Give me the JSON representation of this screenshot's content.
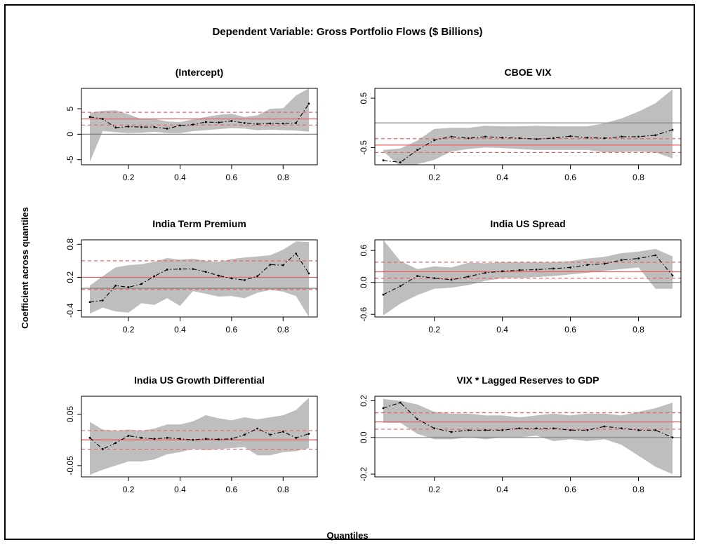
{
  "main_title": "Dependent Variable: Gross Portfolio Flows ($ Billions)",
  "ylabel": "Coefficient across quantiles",
  "xlabel": "Quantiles",
  "colors": {
    "band": "#bebebe",
    "ols": "#f06060",
    "zero": "#808080",
    "line": "#000000"
  },
  "chart_data": [
    {
      "type": "line",
      "title": "(Intercept)",
      "x": [
        0.05,
        0.1,
        0.15,
        0.2,
        0.25,
        0.3,
        0.35,
        0.4,
        0.45,
        0.5,
        0.55,
        0.6,
        0.65,
        0.7,
        0.75,
        0.8,
        0.85,
        0.9
      ],
      "series": [
        {
          "values": [
            3.4,
            3.0,
            1.3,
            1.5,
            1.4,
            1.4,
            1.1,
            1.7,
            1.9,
            2.4,
            2.3,
            2.6,
            2.2,
            2.0,
            2.1,
            2.1,
            2.2,
            6.0
          ]
        }
      ],
      "band_low": [
        -5.4,
        0.6,
        0.4,
        0.2,
        0.3,
        0.5,
        0.2,
        0.2,
        0.6,
        0.8,
        1.0,
        1.2,
        1.1,
        0.8,
        0.9,
        0.8,
        0.7,
        0.5
      ],
      "band_high": [
        4.2,
        4.6,
        4.7,
        3.9,
        3.0,
        3.0,
        2.5,
        2.4,
        2.9,
        3.4,
        3.8,
        4.0,
        3.4,
        3.7,
        5.0,
        5.1,
        7.6,
        9.0
      ],
      "ols": 3.0,
      "ols_low": 1.8,
      "ols_high": 4.3,
      "xlim": [
        0.05,
        0.9
      ],
      "ylim": [
        -6,
        9
      ],
      "xticks": [
        0.2,
        0.4,
        0.6,
        0.8
      ],
      "xticklabels": [
        "0.2",
        "0.4",
        "0.6",
        "0.8"
      ],
      "yticks": [
        -5,
        0,
        5
      ],
      "yticklabels": [
        "-5",
        "0",
        "5"
      ]
    },
    {
      "type": "line",
      "title": "CBOE VIX",
      "x": [
        0.05,
        0.1,
        0.15,
        0.2,
        0.25,
        0.3,
        0.35,
        0.4,
        0.45,
        0.5,
        0.55,
        0.6,
        0.65,
        0.7,
        0.75,
        0.8,
        0.85,
        0.9
      ],
      "series": [
        {
          "values": [
            -0.76,
            -0.8,
            -0.55,
            -0.35,
            -0.28,
            -0.31,
            -0.28,
            -0.3,
            -0.31,
            -0.33,
            -0.31,
            -0.27,
            -0.3,
            -0.31,
            -0.28,
            -0.28,
            -0.25,
            -0.14
          ]
        }
      ],
      "band_low": [
        -0.58,
        -0.88,
        -0.84,
        -0.75,
        -0.58,
        -0.53,
        -0.5,
        -0.51,
        -0.53,
        -0.55,
        -0.55,
        -0.55,
        -0.55,
        -0.6,
        -0.59,
        -0.58,
        -0.6,
        -0.72
      ],
      "band_high": [
        -0.55,
        -0.52,
        -0.36,
        -0.12,
        -0.1,
        -0.1,
        -0.06,
        -0.07,
        -0.07,
        -0.06,
        -0.07,
        -0.07,
        -0.07,
        -0.01,
        0.09,
        0.23,
        0.4,
        0.68
      ],
      "ols": -0.45,
      "ols_low": -0.6,
      "ols_high": -0.32,
      "xlim": [
        0.05,
        0.9
      ],
      "ylim": [
        -0.85,
        0.7
      ],
      "xticks": [
        0.2,
        0.4,
        0.6,
        0.8
      ],
      "xticklabels": [
        "0.2",
        "0.4",
        "0.6",
        "0.8"
      ],
      "yticks": [
        -0.5,
        0.5
      ],
      "yticklabels": [
        "-0.5",
        "0.5"
      ]
    },
    {
      "type": "line",
      "title": "India Term Premium",
      "x": [
        0.05,
        0.1,
        0.15,
        0.2,
        0.25,
        0.3,
        0.35,
        0.4,
        0.45,
        0.5,
        0.55,
        0.6,
        0.65,
        0.7,
        0.75,
        0.8,
        0.85,
        0.9
      ],
      "series": [
        {
          "values": [
            -0.25,
            -0.22,
            0.05,
            0.02,
            0.08,
            0.22,
            0.34,
            0.35,
            0.35,
            0.3,
            0.23,
            0.18,
            0.15,
            0.22,
            0.43,
            0.42,
            0.63,
            0.27
          ]
        }
      ],
      "band_low": [
        -0.46,
        -0.35,
        -0.42,
        -0.44,
        -0.27,
        -0.3,
        -0.18,
        -0.32,
        -0.05,
        -0.1,
        -0.15,
        -0.14,
        -0.18,
        -0.08,
        -0.03,
        -0.06,
        -0.14,
        -0.52
      ],
      "band_high": [
        0.05,
        0.22,
        0.38,
        0.42,
        0.44,
        0.48,
        0.55,
        0.52,
        0.54,
        0.5,
        0.48,
        0.53,
        0.56,
        0.58,
        0.6,
        0.7,
        0.85,
        0.84
      ],
      "ols": 0.2,
      "ols_low": -0.02,
      "ols_high": 0.5,
      "xlim": [
        0.05,
        0.9
      ],
      "ylim": [
        -0.52,
        0.88
      ],
      "xticks": [
        0.2,
        0.4,
        0.6,
        0.8
      ],
      "xticklabels": [
        "0.2",
        "0.4",
        "0.6",
        "0.8"
      ],
      "yticks": [
        -0.4,
        0.2,
        0.8
      ],
      "yticklabels": [
        "-0.4",
        "0.2",
        "0.8"
      ]
    },
    {
      "type": "line",
      "title": "India US Spread",
      "x": [
        0.05,
        0.1,
        0.15,
        0.2,
        0.25,
        0.3,
        0.35,
        0.4,
        0.45,
        0.5,
        0.55,
        0.6,
        0.65,
        0.7,
        0.75,
        0.8,
        0.85,
        0.9
      ],
      "series": [
        {
          "values": [
            -0.23,
            -0.07,
            0.12,
            0.08,
            0.05,
            0.11,
            0.18,
            0.21,
            0.23,
            0.24,
            0.26,
            0.28,
            0.33,
            0.35,
            0.42,
            0.45,
            0.51,
            0.13
          ]
        }
      ],
      "band_low": [
        -0.62,
        -0.4,
        -0.24,
        -0.12,
        -0.1,
        -0.05,
        0.03,
        0.08,
        0.08,
        0.1,
        0.12,
        0.15,
        0.18,
        0.22,
        0.25,
        0.28,
        -0.12,
        -0.12
      ],
      "band_high": [
        0.8,
        0.4,
        0.25,
        0.3,
        0.28,
        0.37,
        0.36,
        0.38,
        0.38,
        0.38,
        0.38,
        0.4,
        0.45,
        0.48,
        0.55,
        0.58,
        0.63,
        0.49
      ],
      "ols": 0.2,
      "ols_low": 0.08,
      "ols_high": 0.38,
      "xlim": [
        0.05,
        0.9
      ],
      "ylim": [
        -0.65,
        0.8
      ],
      "xticks": [
        0.2,
        0.4,
        0.6,
        0.8
      ],
      "xticklabels": [
        "0.2",
        "0.4",
        "0.6",
        "0.8"
      ],
      "yticks": [
        -0.6,
        0.0,
        0.6
      ],
      "yticklabels": [
        "-0.6",
        "0.0",
        "0.6"
      ]
    },
    {
      "type": "line",
      "title": "India US Growth Differential",
      "x": [
        0.05,
        0.1,
        0.15,
        0.2,
        0.25,
        0.3,
        0.35,
        0.4,
        0.45,
        0.5,
        0.55,
        0.6,
        0.65,
        0.7,
        0.75,
        0.8,
        0.85,
        0.9
      ],
      "series": [
        {
          "values": [
            0.004,
            -0.018,
            -0.006,
            0.008,
            0.004,
            0.002,
            0.004,
            0.002,
            0.0,
            0.002,
            0.001,
            0.002,
            0.01,
            0.022,
            0.01,
            0.016,
            0.004,
            0.012
          ]
        }
      ],
      "band_low": [
        -0.068,
        -0.058,
        -0.05,
        -0.042,
        -0.042,
        -0.038,
        -0.028,
        -0.024,
        -0.018,
        -0.02,
        -0.018,
        -0.016,
        -0.014,
        -0.03,
        -0.03,
        -0.024,
        -0.022,
        -0.016
      ],
      "band_high": [
        0.035,
        0.02,
        0.018,
        0.02,
        0.018,
        0.022,
        0.03,
        0.03,
        0.036,
        0.048,
        0.042,
        0.038,
        0.044,
        0.04,
        0.044,
        0.048,
        0.058,
        0.082
      ],
      "ols": 0.0,
      "ols_low": -0.018,
      "ols_high": 0.018,
      "xlim": [
        0.05,
        0.9
      ],
      "ylim": [
        -0.072,
        0.085
      ],
      "xticks": [
        0.2,
        0.4,
        0.6,
        0.8
      ],
      "xticklabels": [
        "0.2",
        "0.4",
        "0.6",
        "0.8"
      ],
      "yticks": [
        -0.05,
        0.05
      ],
      "yticklabels": [
        "-0.05",
        "0.05"
      ]
    },
    {
      "type": "line",
      "title": "VIX * Lagged Reserves to GDP",
      "x": [
        0.05,
        0.1,
        0.15,
        0.2,
        0.25,
        0.3,
        0.35,
        0.4,
        0.45,
        0.5,
        0.55,
        0.6,
        0.65,
        0.7,
        0.75,
        0.8,
        0.85,
        0.9
      ],
      "series": [
        {
          "values": [
            0.16,
            0.19,
            0.1,
            0.05,
            0.03,
            0.04,
            0.04,
            0.04,
            0.05,
            0.05,
            0.05,
            0.04,
            0.04,
            0.06,
            0.05,
            0.04,
            0.04,
            0.0
          ]
        }
      ],
      "band_low": [
        0.08,
        0.08,
        0.02,
        -0.01,
        -0.01,
        0.0,
        -0.01,
        0.0,
        0.0,
        0.01,
        -0.02,
        -0.01,
        -0.02,
        -0.01,
        -0.04,
        -0.1,
        -0.16,
        -0.2
      ],
      "band_high": [
        0.21,
        0.2,
        0.18,
        0.14,
        0.13,
        0.13,
        0.12,
        0.12,
        0.11,
        0.12,
        0.13,
        0.12,
        0.13,
        0.13,
        0.12,
        0.14,
        0.16,
        0.19
      ],
      "ols": 0.085,
      "ols_low": 0.045,
      "ols_high": 0.135,
      "xlim": [
        0.05,
        0.9
      ],
      "ylim": [
        -0.215,
        0.225
      ],
      "xticks": [
        0.2,
        0.4,
        0.6,
        0.8
      ],
      "xticklabels": [
        "0.2",
        "0.4",
        "0.6",
        "0.8"
      ],
      "yticks": [
        -0.2,
        0.0,
        0.2
      ],
      "yticklabels": [
        "-0.2",
        "0.0",
        "0.2"
      ]
    }
  ]
}
